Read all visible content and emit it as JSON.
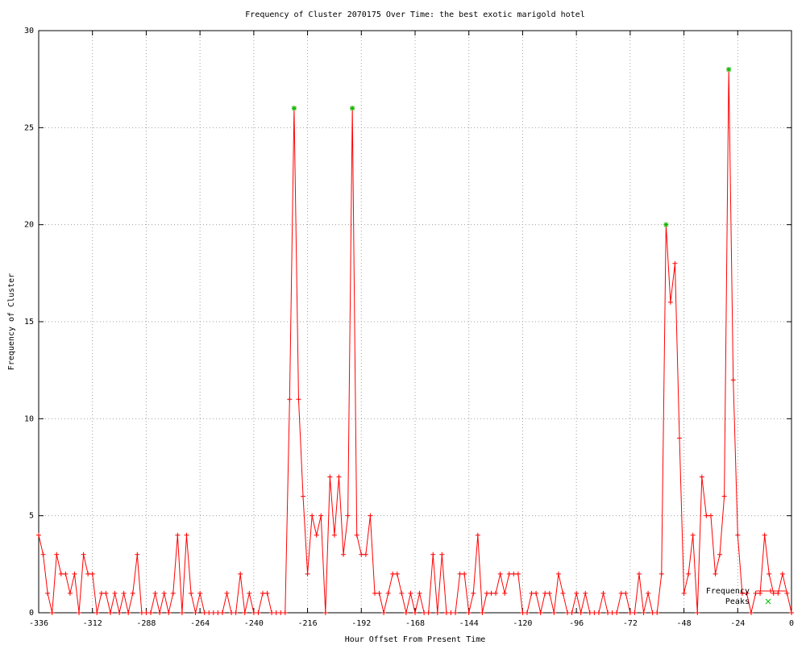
{
  "chart_data": {
    "type": "line",
    "title": "Frequency of Cluster 2070175 Over Time: the best exotic marigold hotel",
    "xlabel": "Hour Offset From Present Time",
    "ylabel": "Frequency of Cluster",
    "x": [
      -336,
      -334,
      -332,
      -330,
      -328,
      -326,
      -324,
      -322,
      -320,
      -318,
      -316,
      -314,
      -312,
      -310,
      -308,
      -306,
      -304,
      -302,
      -300,
      -298,
      -296,
      -294,
      -292,
      -290,
      -288,
      -286,
      -284,
      -282,
      -280,
      -278,
      -276,
      -274,
      -272,
      -270,
      -268,
      -266,
      -264,
      -262,
      -260,
      -258,
      -256,
      -254,
      -252,
      -250,
      -248,
      -246,
      -244,
      -242,
      -240,
      -238,
      -236,
      -234,
      -232,
      -230,
      -228,
      -226,
      -224,
      -222,
      -220,
      -218,
      -216,
      -214,
      -212,
      -210,
      -208,
      -206,
      -204,
      -202,
      -200,
      -198,
      -196,
      -194,
      -192,
      -190,
      -188,
      -186,
      -184,
      -182,
      -180,
      -178,
      -176,
      -174,
      -172,
      -170,
      -168,
      -166,
      -164,
      -162,
      -160,
      -158,
      -156,
      -154,
      -152,
      -150,
      -148,
      -146,
      -144,
      -142,
      -140,
      -138,
      -136,
      -134,
      -132,
      -130,
      -128,
      -126,
      -124,
      -122,
      -120,
      -118,
      -116,
      -114,
      -112,
      -110,
      -108,
      -106,
      -104,
      -102,
      -100,
      -98,
      -96,
      -94,
      -92,
      -90,
      -88,
      -86,
      -84,
      -82,
      -80,
      -78,
      -76,
      -74,
      -72,
      -70,
      -68,
      -66,
      -64,
      -62,
      -60,
      -58,
      -56,
      -54,
      -52,
      -50,
      -48,
      -46,
      -44,
      -42,
      -40,
      -38,
      -36,
      -34,
      -32,
      -30,
      -28,
      -26,
      -24,
      -22,
      -20,
      -18,
      -16,
      -14,
      -12,
      -10,
      -8,
      -6,
      -4,
      -2,
      0
    ],
    "series": [
      {
        "name": "Frequency",
        "color": "#ff0000",
        "values": [
          4,
          3,
          1,
          0,
          3,
          2,
          2,
          1,
          2,
          0,
          3,
          2,
          2,
          0,
          1,
          1,
          0,
          1,
          0,
          1,
          0,
          1,
          3,
          0,
          0,
          0,
          1,
          0,
          1,
          0,
          1,
          4,
          0,
          4,
          1,
          0,
          1,
          0,
          0,
          0,
          0,
          0,
          1,
          0,
          0,
          2,
          0,
          1,
          0,
          0,
          1,
          1,
          0,
          0,
          0,
          0,
          11,
          26,
          11,
          6,
          2,
          5,
          4,
          5,
          0,
          7,
          4,
          7,
          3,
          5,
          26,
          4,
          3,
          3,
          5,
          1,
          1,
          0,
          1,
          2,
          2,
          1,
          0,
          1,
          0,
          1,
          0,
          0,
          3,
          0,
          3,
          0,
          0,
          0,
          2,
          2,
          0,
          1,
          4,
          0,
          1,
          1,
          1,
          2,
          1,
          2,
          2,
          2,
          0,
          0,
          1,
          1,
          0,
          1,
          1,
          0,
          2,
          1,
          0,
          0,
          1,
          0,
          1,
          0,
          0,
          0,
          1,
          0,
          0,
          0,
          1,
          1,
          0,
          0,
          2,
          0,
          1,
          0,
          0,
          2,
          20,
          16,
          18,
          9,
          1,
          2,
          4,
          0,
          7,
          5,
          5,
          2,
          3,
          6,
          28,
          12,
          4,
          1,
          1,
          0,
          1,
          1,
          4,
          2,
          1,
          1,
          2,
          1,
          0
        ]
      },
      {
        "name": "Peaks",
        "color": "#00c000",
        "x": [
          -222,
          -196,
          -56,
          -28
        ],
        "values": [
          26,
          26,
          20,
          28
        ]
      }
    ],
    "xlim": [
      -336,
      0
    ],
    "ylim": [
      0,
      30
    ],
    "xticks": [
      -336,
      -312,
      -288,
      -264,
      -240,
      -216,
      -192,
      -168,
      -144,
      -120,
      -96,
      -72,
      -48,
      -24,
      0
    ],
    "yticks": [
      0,
      5,
      10,
      15,
      20,
      25,
      30
    ],
    "grid": true,
    "legend": "lower right"
  }
}
